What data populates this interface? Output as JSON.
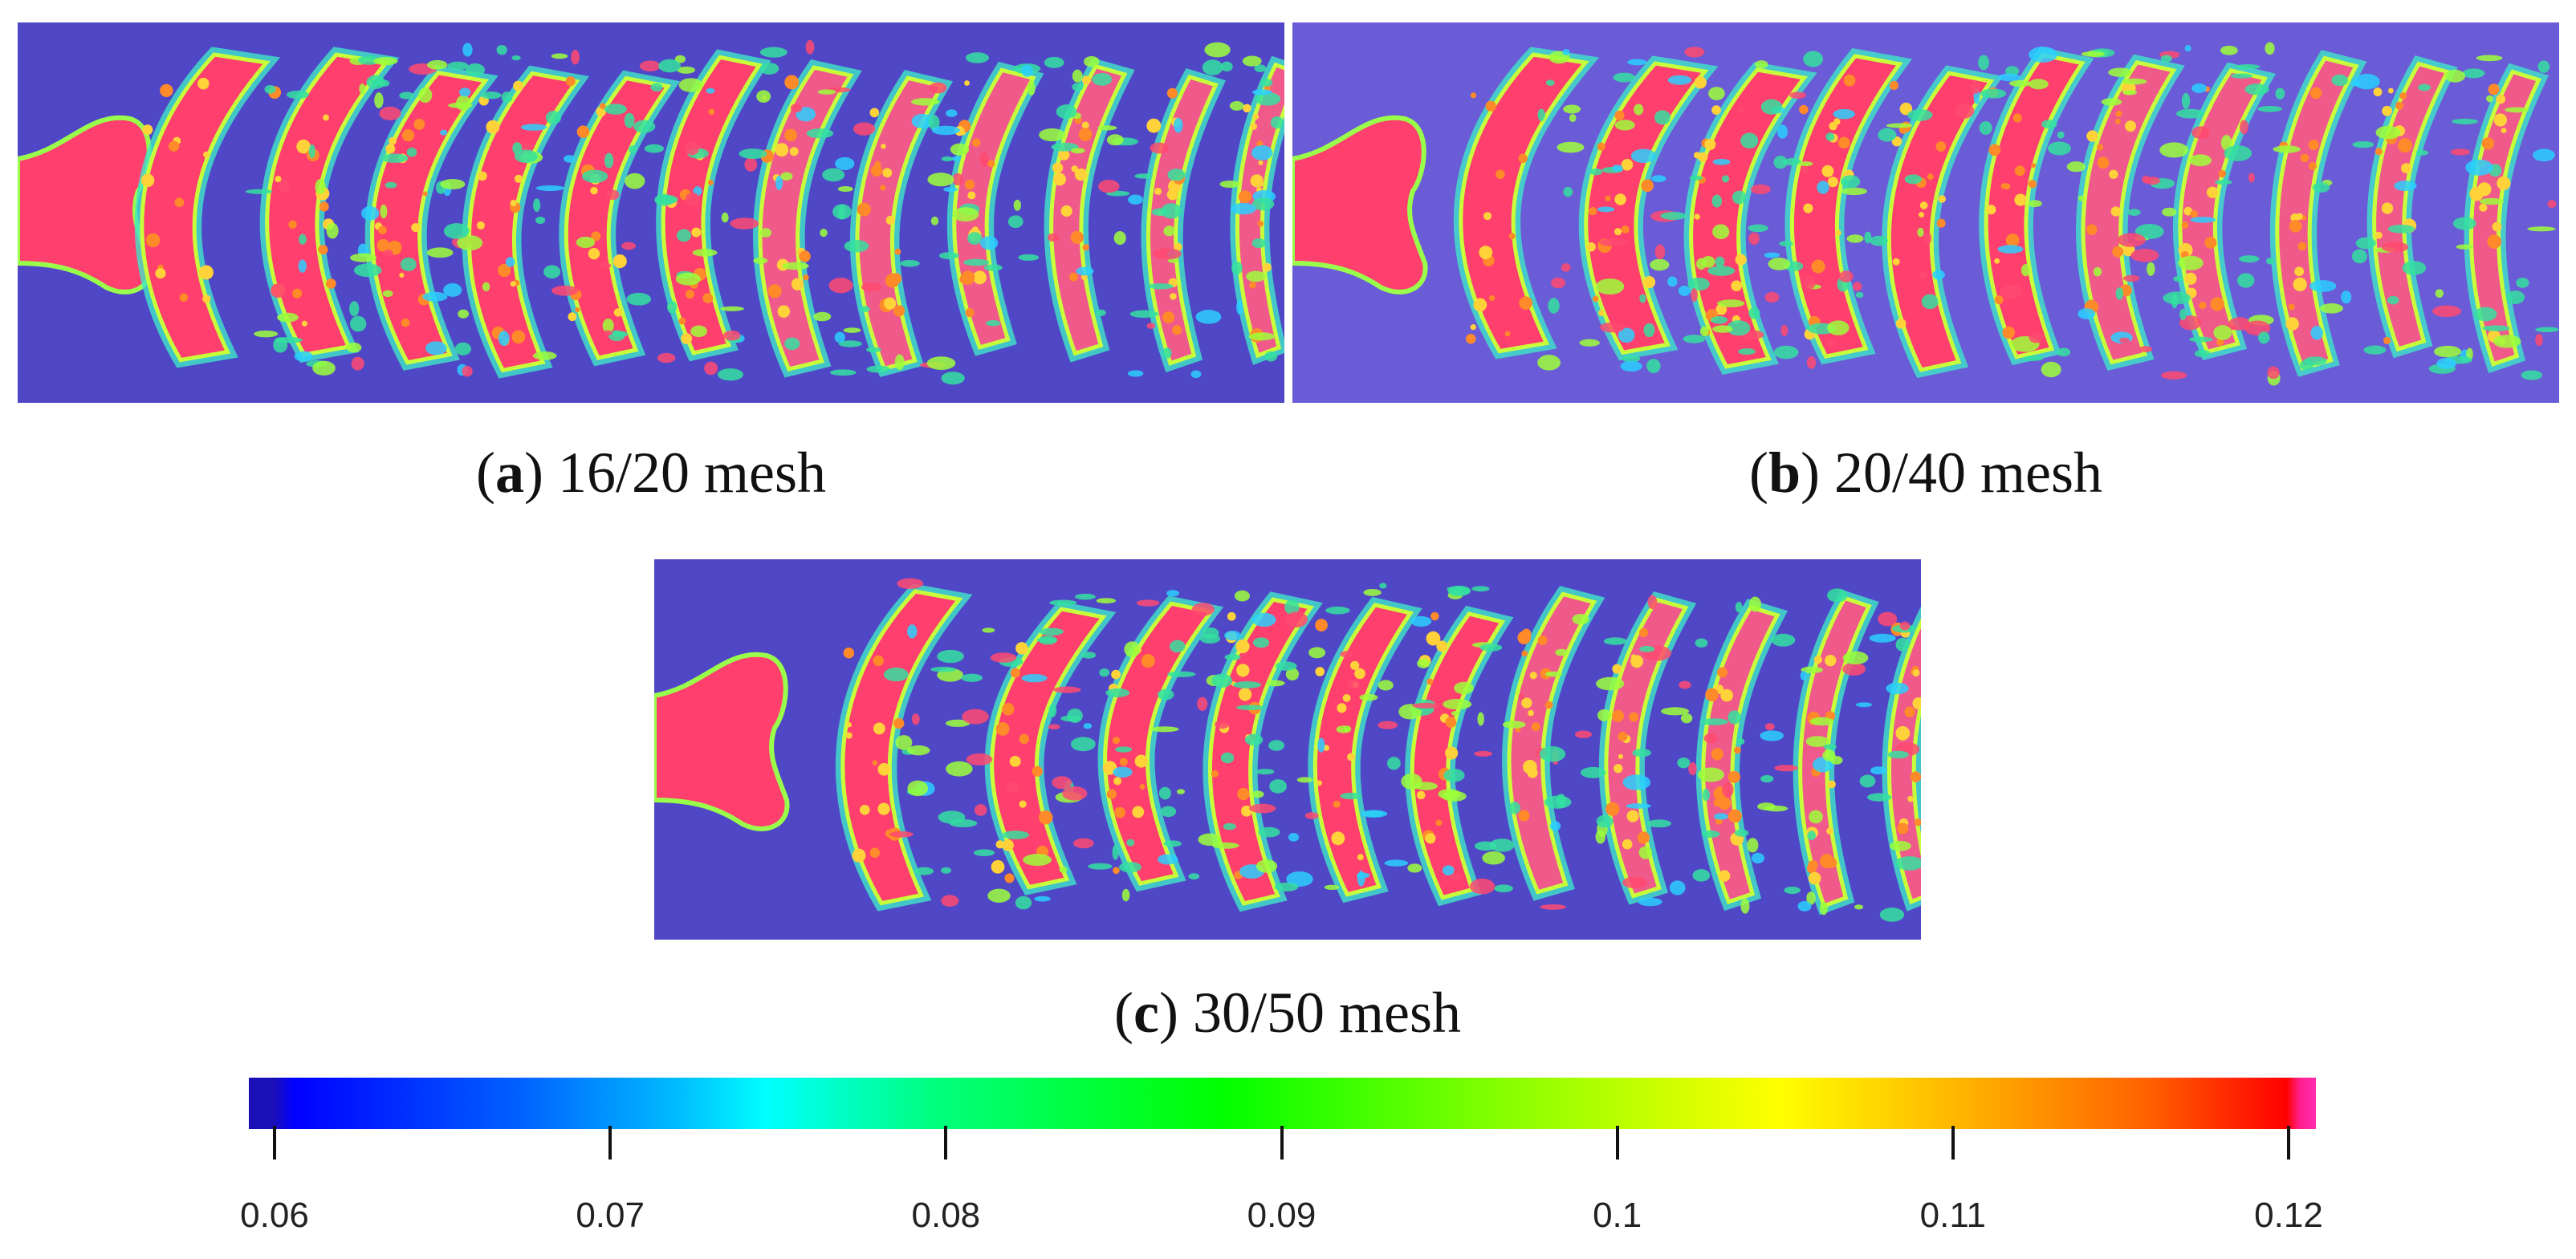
{
  "figure": {
    "panels": [
      {
        "id": "a",
        "letter": "a",
        "label": " 16/20 mesh"
      },
      {
        "id": "b",
        "letter": "b",
        "label": " 20/40 mesh"
      },
      {
        "id": "c",
        "letter": "c",
        "label": " 30/50 mesh"
      }
    ],
    "colorbar": {
      "min": 0.06,
      "max": 0.12,
      "ticks": [
        "0.06",
        "0.07",
        "0.08",
        "0.09",
        "0.1",
        "0.11",
        "0.12"
      ],
      "tick_values": [
        0.06,
        0.07,
        0.08,
        0.09,
        0.1,
        0.11,
        0.12
      ]
    }
  }
}
